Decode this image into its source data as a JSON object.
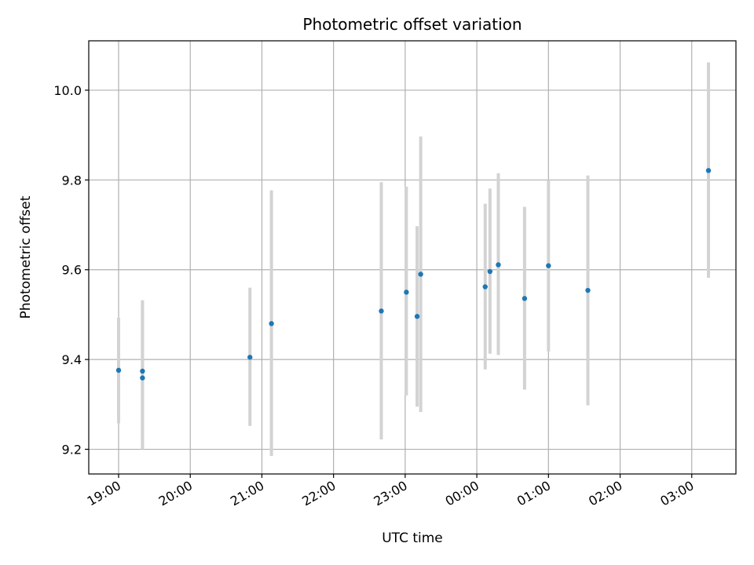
{
  "chart_data": {
    "type": "scatter",
    "title": "Photometric offset variation",
    "xlabel": "UTC time",
    "ylabel": "Photometric offset",
    "x_is_time": true,
    "xlim": [
      "18:35",
      "27:37"
    ],
    "ylim": [
      9.145,
      10.11
    ],
    "xticks": [
      {
        "t": "19:00",
        "label": "19:00"
      },
      {
        "t": "20:00",
        "label": "20:00"
      },
      {
        "t": "21:00",
        "label": "21:00"
      },
      {
        "t": "22:00",
        "label": "22:00"
      },
      {
        "t": "23:00",
        "label": "23:00"
      },
      {
        "t": "24:00",
        "label": "00:00"
      },
      {
        "t": "25:00",
        "label": "01:00"
      },
      {
        "t": "26:00",
        "label": "02:00"
      },
      {
        "t": "27:00",
        "label": "03:00"
      }
    ],
    "yticks": [
      9.2,
      9.4,
      9.6,
      9.8,
      10.0
    ],
    "ytick_labels": [
      "9.2",
      "9.4",
      "9.6",
      "9.8",
      "10.0"
    ],
    "grid": true,
    "point_color": "#1f77b4",
    "errorbar_color": "#d3d3d3",
    "points": [
      {
        "t": "19:00",
        "y": 9.376,
        "err": [
          9.258,
          9.493
        ]
      },
      {
        "t": "19:20",
        "y": 9.374,
        "err": [
          9.222,
          9.532
        ]
      },
      {
        "t": "19:20",
        "y": 9.359,
        "err": [
          9.2,
          9.518
        ]
      },
      {
        "t": "20:50",
        "y": 9.405,
        "err": [
          9.252,
          9.56
        ]
      },
      {
        "t": "21:08",
        "y": 9.48,
        "err": [
          9.185,
          9.777
        ]
      },
      {
        "t": "22:40",
        "y": 9.508,
        "err": [
          9.222,
          9.795
        ]
      },
      {
        "t": "23:01",
        "y": 9.55,
        "err": [
          9.32,
          9.785
        ]
      },
      {
        "t": "23:10",
        "y": 9.496,
        "err": [
          9.295,
          9.697
        ]
      },
      {
        "t": "23:13",
        "y": 9.59,
        "err": [
          9.283,
          9.897
        ]
      },
      {
        "t": "24:07",
        "y": 9.562,
        "err": [
          9.378,
          9.747
        ]
      },
      {
        "t": "24:11",
        "y": 9.596,
        "err": [
          9.413,
          9.781
        ]
      },
      {
        "t": "24:18",
        "y": 9.611,
        "err": [
          9.41,
          9.815
        ]
      },
      {
        "t": "24:40",
        "y": 9.536,
        "err": [
          9.333,
          9.74
        ]
      },
      {
        "t": "25:00",
        "y": 9.609,
        "err": [
          9.418,
          9.8
        ]
      },
      {
        "t": "25:33",
        "y": 9.554,
        "err": [
          9.298,
          9.81
        ]
      },
      {
        "t": "27:14",
        "y": 9.821,
        "err": [
          9.582,
          10.062
        ]
      }
    ]
  }
}
